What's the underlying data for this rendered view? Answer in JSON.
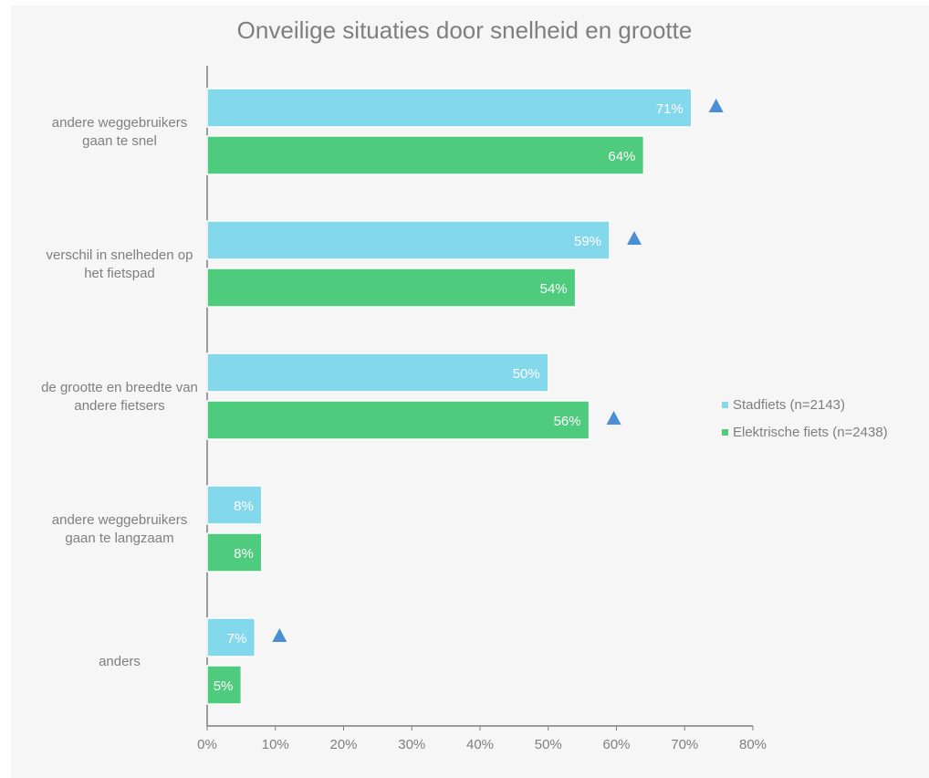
{
  "chart_data": {
    "type": "bar",
    "orientation": "horizontal",
    "title": "Onveilige situaties door snelheid en grootte",
    "categories": [
      [
        "andere weggebruikers",
        "gaan te snel"
      ],
      [
        "verschil in snelheden op",
        "het fietspad"
      ],
      [
        "de grootte en breedte van",
        "andere fietsers"
      ],
      [
        "andere weggebruikers",
        "gaan te langzaam"
      ],
      [
        "anders"
      ]
    ],
    "series": [
      {
        "name": "Stadfiets (n=2143)",
        "color": "#84d8ec",
        "values": [
          71,
          59,
          50,
          8,
          7
        ],
        "labels": [
          "71%",
          "59%",
          "50%",
          "8%",
          "7%"
        ]
      },
      {
        "name": "Elektrische fiets (n=2438)",
        "color": "#4ecb7c",
        "values": [
          64,
          54,
          56,
          8,
          5
        ],
        "labels": [
          "64%",
          "54%",
          "56%",
          "8%",
          "5%"
        ]
      }
    ],
    "significance_markers": [
      {
        "category_index": 0,
        "series_index": 0
      },
      {
        "category_index": 1,
        "series_index": 0
      },
      {
        "category_index": 2,
        "series_index": 1
      },
      {
        "category_index": 4,
        "series_index": 0
      }
    ],
    "marker_color": "#4a8fd6",
    "xlim": [
      0,
      80
    ],
    "xticks": [
      "0%",
      "10%",
      "20%",
      "30%",
      "40%",
      "50%",
      "60%",
      "70%",
      "80%"
    ],
    "grid": false,
    "legend_position": "right"
  }
}
